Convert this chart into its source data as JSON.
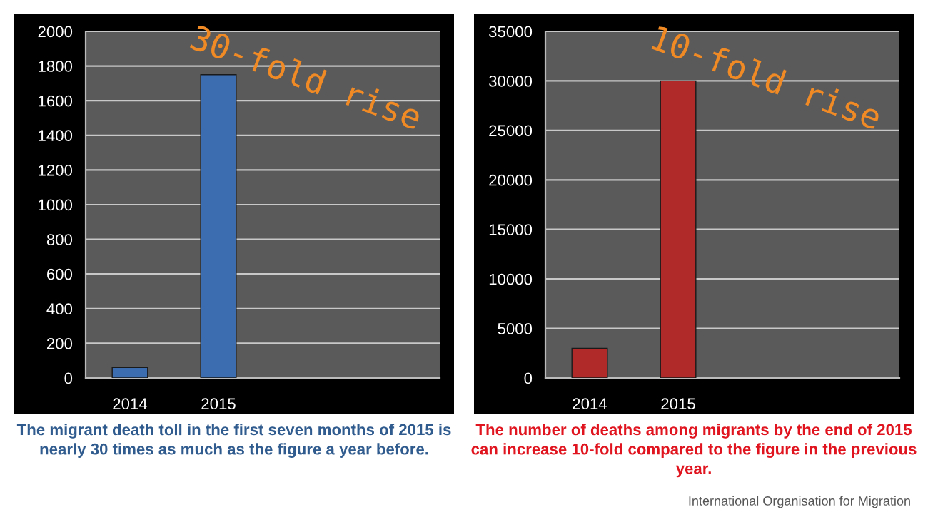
{
  "chart_data": [
    {
      "type": "bar",
      "categories": [
        "2014",
        "2015",
        null,
        null
      ],
      "values": [
        60,
        1750,
        null,
        null
      ],
      "color": "#3b6db0",
      "ylim": [
        0,
        2000
      ],
      "yticks": [
        0,
        200,
        400,
        600,
        800,
        1000,
        1200,
        1400,
        1600,
        1800,
        2000
      ],
      "grid": "y",
      "annotations": [
        "30-fold rise",
        "The migrant death toll in the first seven months of 2015 is nearly 30 times as much as the figure a year before."
      ]
    },
    {
      "type": "bar",
      "categories": [
        "2014",
        "2015",
        null,
        null
      ],
      "values": [
        3000,
        30000,
        null,
        null
      ],
      "color": "#b02a2a",
      "ylim": [
        0,
        35000
      ],
      "yticks": [
        0,
        5000,
        10000,
        15000,
        20000,
        25000,
        30000,
        35000
      ],
      "grid": "y",
      "annotations": [
        "10-fold rise",
        "The number of deaths among migrants by the end of 2015 can increase 10-fold compared to the figure in the previous year.",
        "International Organisation for Migration"
      ]
    }
  ]
}
